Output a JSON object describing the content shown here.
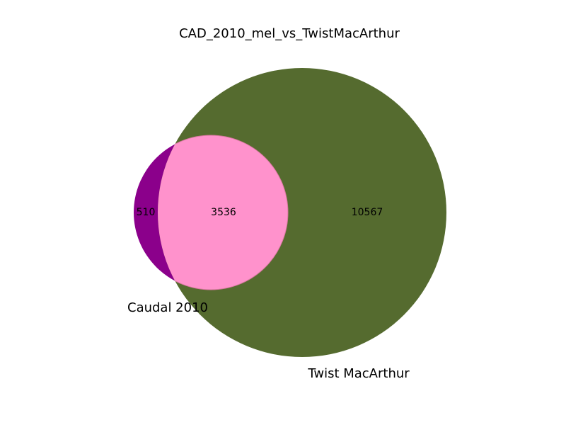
{
  "chart_data": {
    "type": "venn",
    "title": "CAD_2010_mel_vs_TwistMacArthur",
    "sets": [
      {
        "name": "Caudal 2010",
        "color": "#8b008b"
      },
      {
        "name": "Twist MacArthur",
        "color": "#556b2f"
      }
    ],
    "intersection_color": "#ff92cc",
    "regions": {
      "only_a": 510,
      "only_b": 10567,
      "a_and_b": 3536
    }
  }
}
